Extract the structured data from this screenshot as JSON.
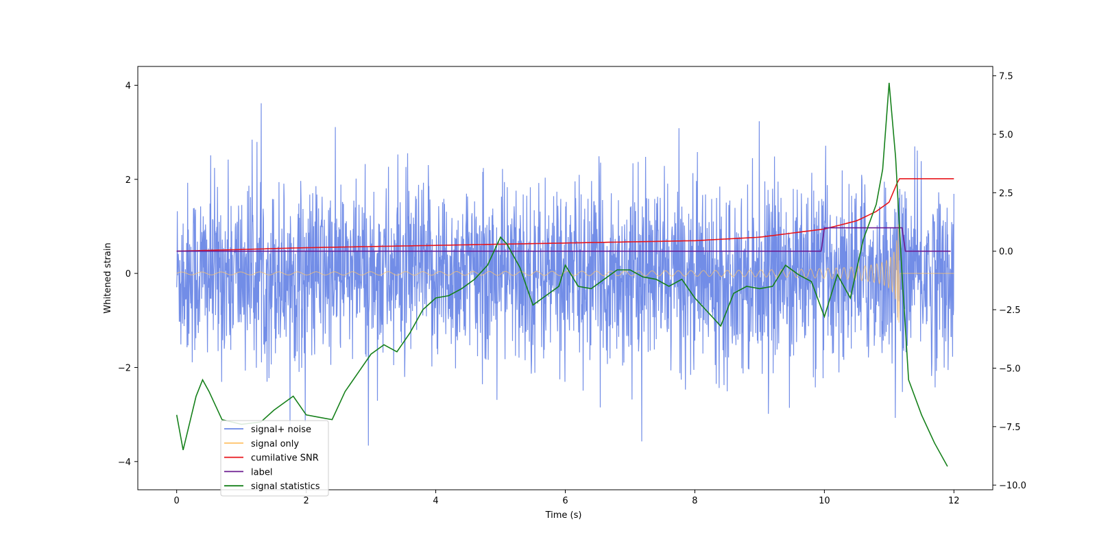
{
  "chart_data": {
    "type": "line",
    "title": "",
    "xlabel": "Time (s)",
    "ylabel": "Whitened strain",
    "y2label": "",
    "xlim": [
      -0.6,
      12.6
    ],
    "ylim": [
      -4.6,
      4.4
    ],
    "y2lim": [
      -10.2,
      7.9
    ],
    "xticks": [
      0,
      2,
      4,
      6,
      8,
      10,
      12
    ],
    "yticks": [
      -4,
      -2,
      0,
      2,
      4
    ],
    "y2ticks": [
      -10.0,
      -7.5,
      -5.0,
      -2.5,
      0.0,
      2.5,
      5.0,
      7.5
    ],
    "y2tick_labels": [
      "−10.0",
      "−7.5",
      "−5.0",
      "−2.5",
      "0.0",
      "2.5",
      "5.0",
      "7.5"
    ],
    "grid": false,
    "legend_placement": "lower-left",
    "series": [
      {
        "name": "signal+ noise",
        "axis": "left",
        "color": "#6a87e6",
        "kind": "noise",
        "x_range": [
          0,
          12
        ],
        "typical_range": [
          -2.2,
          2.2
        ],
        "peak_max": 4.0,
        "peak_min": -4.15
      },
      {
        "name": "signal only",
        "axis": "left",
        "color": "#ffc46b",
        "kind": "chirp",
        "x_range": [
          0,
          11.15
        ],
        "amplitude_start": 0.03,
        "amplitude_peak": 1.05,
        "merger_time": 11.15
      },
      {
        "name": "cumilative SNR",
        "axis": "right",
        "color": "#e8141a",
        "x": [
          0,
          2,
          4,
          6,
          8,
          9,
          10,
          10.5,
          10.8,
          11.0,
          11.15,
          12
        ],
        "y": [
          0.0,
          0.15,
          0.25,
          0.35,
          0.45,
          0.6,
          0.95,
          1.3,
          1.7,
          2.1,
          3.1,
          3.1
        ]
      },
      {
        "name": "label",
        "axis": "right",
        "color": "#6b1a8f",
        "x": [
          0,
          9.95,
          10.0,
          11.2,
          11.25,
          11.95
        ],
        "y": [
          0.0,
          0.0,
          1.0,
          1.0,
          0.0,
          0.0
        ]
      },
      {
        "name": "signal statistics",
        "axis": "right",
        "color": "#15801a",
        "x": [
          0,
          0.1,
          0.3,
          0.4,
          0.5,
          0.7,
          1.0,
          1.3,
          1.5,
          1.8,
          2.0,
          2.2,
          2.4,
          2.6,
          2.8,
          3.0,
          3.2,
          3.4,
          3.6,
          3.8,
          4.0,
          4.2,
          4.4,
          4.6,
          4.8,
          5.0,
          5.1,
          5.3,
          5.5,
          5.7,
          5.9,
          6.0,
          6.2,
          6.4,
          6.6,
          6.8,
          7.0,
          7.2,
          7.4,
          7.6,
          7.8,
          8.0,
          8.2,
          8.4,
          8.6,
          8.8,
          9.0,
          9.2,
          9.4,
          9.6,
          9.8,
          10.0,
          10.2,
          10.4,
          10.6,
          10.8,
          10.9,
          11.0,
          11.1,
          11.2,
          11.3,
          11.5,
          11.7,
          11.9
        ],
        "y": [
          -7.0,
          -8.5,
          -6.2,
          -5.5,
          -6.0,
          -7.2,
          -7.4,
          -7.3,
          -6.8,
          -6.2,
          -7.0,
          -7.1,
          -7.2,
          -6.0,
          -5.2,
          -4.4,
          -4.0,
          -4.3,
          -3.5,
          -2.5,
          -2.0,
          -1.9,
          -1.6,
          -1.2,
          -0.6,
          0.6,
          0.3,
          -0.7,
          -2.3,
          -1.9,
          -1.5,
          -0.6,
          -1.5,
          -1.6,
          -1.2,
          -0.8,
          -0.8,
          -1.1,
          -1.2,
          -1.5,
          -1.2,
          -2.0,
          -2.6,
          -3.2,
          -1.8,
          -1.5,
          -1.6,
          -1.5,
          -0.6,
          -1.0,
          -1.3,
          -2.8,
          -1.0,
          -2.0,
          0.5,
          2.0,
          3.5,
          7.2,
          4.0,
          -1.0,
          -5.5,
          -7.0,
          -8.2,
          -9.2
        ]
      }
    ]
  }
}
